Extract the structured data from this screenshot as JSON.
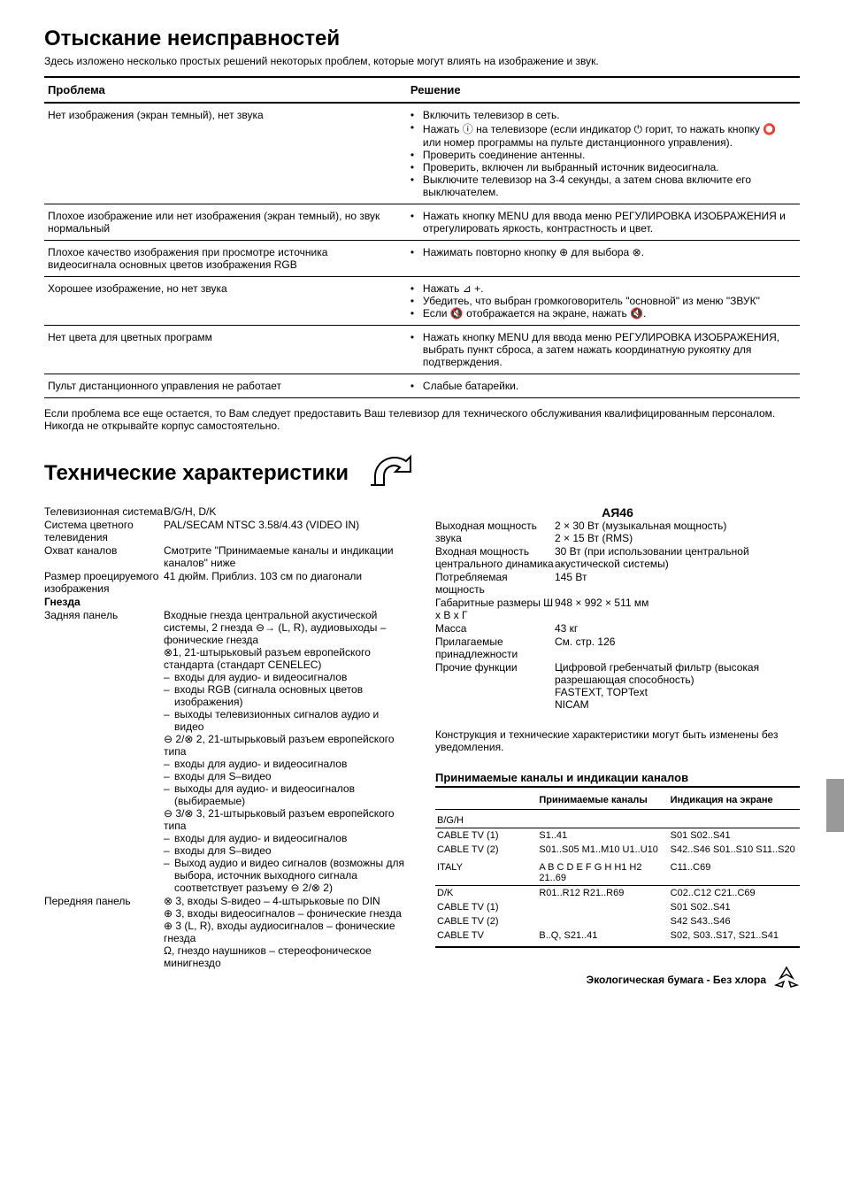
{
  "page": {
    "title1": "Отыскание неисправностей",
    "intro": "Здесь изложено несколько простых решений некоторых проблем, которые могут влиять на изображение и звук.",
    "title2": "Технические характеристики"
  },
  "trouble": {
    "headers": {
      "problem": "Проблема",
      "solution": "Решение"
    },
    "rows": [
      {
        "problem": "Нет изображения (экран темный), нет звука",
        "solutions": [
          "Включить телевизор в сеть.",
          "Нажать ⓘ на телевизоре (если индикатор ⏻ горит, то нажать кнопку ⭕ или номер программы на пульте дистанционного управления).",
          "Проверить соединение антенны.",
          "Проверить, включен ли выбранный источник видеосигнала.",
          "Выключите телевизор на 3-4 секунды, а затем снова включите его выключателем."
        ]
      },
      {
        "problem": "Плохое изображение или нет изображения (экран темный), но звук нормальный",
        "solutions": [
          "Нажать кнопку MENU для ввода меню РЕГУЛИРОВКА ИЗОБРАЖЕНИЯ и отрегулировать яркость, контрастность и цвет."
        ]
      },
      {
        "problem": "Плохое качество изображения при просмотре источника видеосигнала основных цветов изображения RGB",
        "solutions": [
          "Нажимать повторно кнопку ⊕ для выбора ⊗."
        ]
      },
      {
        "problem": "Хорошее изображение, но нет звука",
        "solutions": [
          "Нажать ⊿ +.",
          "Убедитеь, что выбран громкоговоритель \"основной\" из меню \"ЗВУК\"",
          "Если 🔇 отображается на экране, нажать 🔇."
        ]
      },
      {
        "problem": "Нет цвета для цветных программ",
        "solutions": [
          "Нажать кнопку MENU для ввода меню РЕГУЛИРОВКА ИЗОБРАЖЕНИЯ, выбрать пункт сброса, а затем нажать координатную рукоятку для подтверждения."
        ]
      },
      {
        "problem": "Пульт дистанционного управления не работает",
        "solutions": [
          "Слабые батарейки."
        ]
      }
    ]
  },
  "note": "Если проблема все еще остается, то Вам следует предоставить Ваш телевизор для технического обслуживания квалифицированным персоналом. Никогда не открывайте корпус самостоятельно.",
  "recycle_label": "АЯ46",
  "specs_left": {
    "tv_system": {
      "label": "Телевизионная система",
      "value": "B/G/H, D/K"
    },
    "color_system": {
      "label": "Система цветного телевидения",
      "value": "PAL/SECAM NTSC 3.58/4.43 (VIDEO IN)"
    },
    "channels": {
      "label": "Охват каналов",
      "value": "Смотрите \"Принимаемые каналы и индикации каналов\" ниже"
    },
    "image_size": {
      "label": "Размер проецируемого изображения",
      "value": "41 дюйм. Приблиз. 103 см по диагонали"
    },
    "sockets_header": "Гнезда",
    "rear_panel": {
      "label": "Задняя панель",
      "intro": "Входные гнезда центральной акустической системы, 2 гнезда ⊖→ (L, R), аудиовыходы – фонические гнезда",
      "conn1": "⊗1, 21-штырьковый разъем европейского стандарта (стандарт CENELEC)",
      "conn1_items": [
        "входы для аудио- и видеосигналов",
        "входы RGB (сигнала основных цветов изображения)",
        "выходы телевизионных сигналов аудио и видео"
      ],
      "conn2": "⊖ 2/⊗ 2, 21-штырьковый разъем европейского типа",
      "conn2_items": [
        "входы для аудио- и видеосигналов",
        "входы для S–видео",
        "выходы для аудио- и видеосигналов (выбираемые)"
      ],
      "conn3": "⊖ 3/⊗ 3, 21-штырьковый разъем европейского типа",
      "conn3_items": [
        "входы для аудио- и видеосигналов",
        "входы для S–видео",
        "Выход аудио и видео сигналов (возможны для выбора, источник выходного сигнала соответствует разъему ⊖ 2/⊗ 2)"
      ]
    },
    "front_panel": {
      "label": "Передняя панель",
      "value": "⊗ 3, входы S-видео – 4-штырьковые по DIN\n⊕ 3, входы видеосигналов – фонические гнезда\n⊕ 3 (L, R), входы аудиосигналов – фонические гнезда\nΩ, гнездо наушников – стереофоническое минигнездо"
    }
  },
  "specs_right": {
    "output_power": {
      "label": "Выходная мощность звука",
      "value": "2 × 30 Вт (музыкальная мощность)\n2 × 15 Вт (RMS)"
    },
    "input_power": {
      "label": "Входная мощность центрального динамика",
      "value": "30 Вт (при использовании центральной акустической системы)"
    },
    "consumption": {
      "label": "Потребляемая мощность",
      "value": "145 Вт"
    },
    "dimensions": {
      "label": "Габаритные размеры Ш x В x Г",
      "value": "948 × 992 × 511 мм"
    },
    "mass": {
      "label": "Масса",
      "value": "43 кг"
    },
    "accessories": {
      "label": "Прилагаемые принадлежности",
      "value": "См. стр. 126"
    },
    "other": {
      "label": "Прочие функции",
      "value": "Цифровой гребенчатый фильтр (высокая разрешающая способность)\nFASTEXT, TOPText\nNICAM"
    }
  },
  "disclaimer": "Конструкция и технические характеристики могут быть изменены без уведомления.",
  "channels": {
    "heading": "Принимаемые каналы и индикации каналов",
    "headers": {
      "col1": "",
      "col2": "Принимаемые каналы",
      "col3": "Индикация на экране"
    },
    "bgh": "B/G/H",
    "cable1": {
      "label": "CABLE TV (1)",
      "col2": "S1..41",
      "col3": "S01 S02..S41"
    },
    "cable2": {
      "label": "CABLE TV (2)",
      "col2": "S01..S05 M1..M10 U1..U10",
      "col3": "S42..S46 S01..S10 S11..S20"
    },
    "italy": {
      "label": "ITALY",
      "col2": "A B C D E F G H H1 H2 21..69",
      "col3": "C11..C69"
    },
    "dk": "D/K",
    "dk_r": {
      "label": "",
      "col2": "R01..R12 R21..R69",
      "col3": "C02..C12 C21..C69"
    },
    "dk_c1": {
      "label": "CABLE TV (1)",
      "col2": "",
      "col3": "S01 S02..S41"
    },
    "dk_c2": {
      "label": "CABLE TV (2)",
      "col2": "",
      "col3": "S42 S43..S46"
    },
    "dk_ctv": {
      "label": "CABLE TV",
      "col2": "B..Q, S21..41",
      "col3": "S02, S03..S17, S21..S41"
    }
  },
  "eco_footer": "Экологическая бумага - Без хлора"
}
